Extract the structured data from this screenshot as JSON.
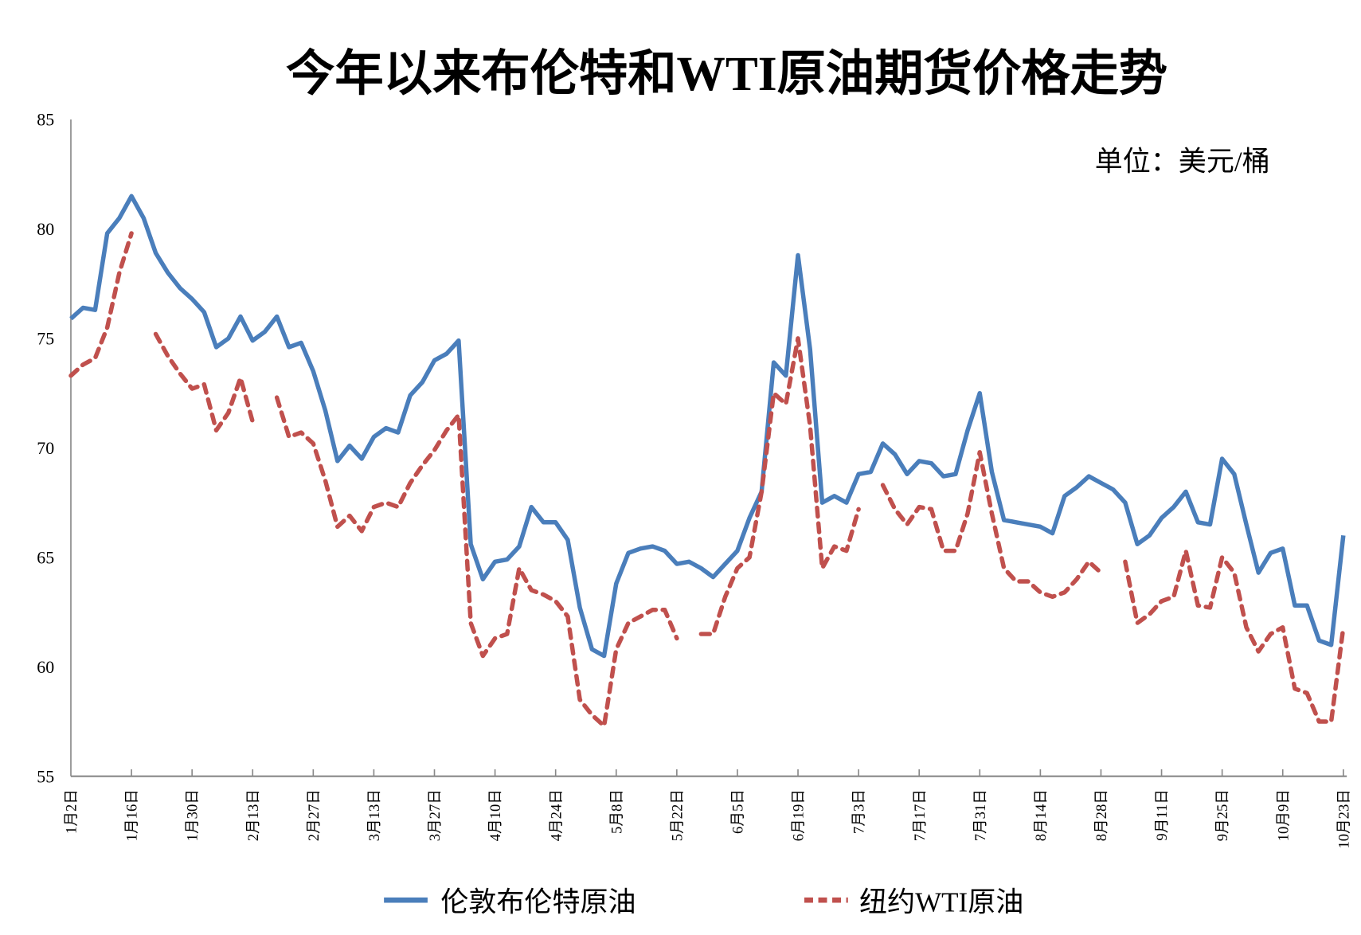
{
  "chart_data": {
    "type": "line",
    "title": "今年以来布伦特和WTI原油期货价格走势",
    "unit_label": "单位：美元/桶",
    "xlabel": "",
    "ylabel": "",
    "ylim": [
      55,
      85
    ],
    "y_ticks": [
      "55",
      "60",
      "65",
      "70",
      "75",
      "80",
      "85"
    ],
    "x_tick_labels": [
      "1月2日",
      "1月16日",
      "1月30日",
      "2月13日",
      "2月27日",
      "3月13日",
      "3月27日",
      "4月10日",
      "4月24日",
      "5月8日",
      "5月22日",
      "6月5日",
      "6月19日",
      "7月3日",
      "7月17日",
      "7月31日",
      "8月14日",
      "8月28日",
      "9月11日",
      "9月25日",
      "10月9日",
      "10月23日"
    ],
    "x_sampling": "values evenly spaced from 1月2日 to 10月23日 (every second trading day)",
    "grid": false,
    "legend_position": "bottom",
    "series": [
      {
        "name": "伦敦布伦特原油",
        "color": "#4A7EBB",
        "style": "solid",
        "values": [
          75.9,
          76.4,
          76.3,
          79.8,
          80.5,
          81.5,
          80.5,
          78.9,
          78.0,
          77.3,
          76.8,
          76.2,
          74.6,
          75.0,
          76.0,
          74.9,
          75.3,
          76.0,
          74.6,
          74.8,
          73.5,
          71.7,
          69.4,
          70.1,
          69.5,
          70.5,
          70.9,
          70.7,
          72.4,
          73.0,
          74.0,
          74.3,
          74.9,
          65.6,
          64.0,
          64.8,
          64.9,
          65.5,
          67.3,
          66.6,
          66.6,
          65.8,
          62.7,
          60.8,
          60.5,
          63.8,
          65.2,
          65.4,
          65.5,
          65.3,
          64.7,
          64.8,
          64.5,
          64.1,
          64.7,
          65.3,
          66.8,
          68.0,
          73.9,
          73.3,
          78.8,
          74.5,
          67.5,
          67.8,
          67.5,
          68.8,
          68.9,
          70.2,
          69.7,
          68.8,
          69.4,
          69.3,
          68.7,
          68.8,
          70.8,
          72.5,
          68.9,
          66.7,
          66.6,
          66.5,
          66.4,
          66.1,
          67.8,
          68.2,
          68.7,
          68.4,
          68.1,
          67.5,
          65.6,
          66.0,
          66.8,
          67.3,
          68.0,
          66.6,
          66.5,
          69.5,
          68.8,
          66.5,
          64.3,
          65.2,
          65.4,
          62.8,
          62.8,
          61.2,
          61.0,
          66.0
        ]
      },
      {
        "name": "纽约WTI原油",
        "color": "#C0504D",
        "style": "dashed",
        "values": [
          73.3,
          73.8,
          74.1,
          75.5,
          78.0,
          79.8,
          null,
          75.2,
          74.2,
          73.4,
          72.7,
          72.9,
          70.8,
          71.6,
          73.2,
          71.2,
          null,
          72.3,
          70.5,
          70.7,
          70.2,
          68.5,
          66.4,
          66.9,
          66.2,
          67.3,
          67.5,
          67.3,
          68.4,
          69.2,
          69.9,
          70.8,
          71.5,
          62.0,
          60.5,
          61.3,
          61.5,
          64.5,
          63.5,
          63.3,
          63.0,
          62.3,
          58.5,
          57.8,
          57.3,
          60.8,
          62.0,
          62.3,
          62.6,
          62.6,
          61.3,
          null,
          61.5,
          61.5,
          63.2,
          64.5,
          65.0,
          68.0,
          72.5,
          72.0,
          75.0,
          71.0,
          64.5,
          65.5,
          65.3,
          67.2,
          null,
          68.3,
          67.2,
          66.5,
          67.3,
          67.2,
          65.3,
          65.3,
          67.0,
          69.8,
          67.0,
          64.5,
          63.9,
          63.9,
          63.4,
          63.2,
          63.4,
          64.0,
          64.8,
          64.3,
          null,
          64.8,
          62.0,
          62.4,
          63.0,
          63.2,
          65.3,
          62.8,
          62.7,
          65.0,
          64.3,
          61.8,
          60.7,
          61.5,
          61.8,
          59.0,
          58.8,
          57.5,
          57.5,
          61.8
        ]
      }
    ]
  }
}
